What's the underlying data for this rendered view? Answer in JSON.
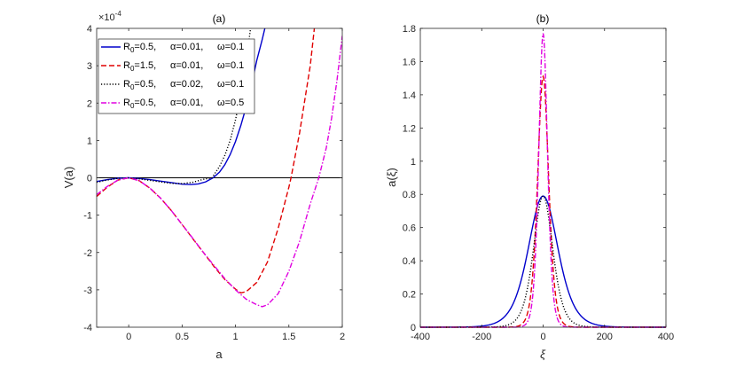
{
  "chart_data": [
    {
      "type": "line",
      "title": "(a)",
      "xlabel": "a",
      "ylabel": "V(a)",
      "exponent_label": "×10",
      "exponent_power": "-4",
      "xlim": [
        -0.3,
        2
      ],
      "ylim": [
        -4,
        4
      ],
      "xticks": [
        0,
        0.5,
        1,
        1.5,
        2
      ],
      "xtick_labels": [
        "0",
        "0.5",
        "1",
        "1.5",
        "2"
      ],
      "yticks": [
        -4,
        -3,
        -2,
        -1,
        0,
        1,
        2,
        3,
        4
      ],
      "ytick_labels": [
        "-4",
        "-3",
        "-2",
        "-1",
        "0",
        "1",
        "2",
        "3",
        "4"
      ],
      "zero_line": true,
      "series": [
        {
          "name": "R0=0.5, α=0.01, ω=0.1",
          "color": "#0000cc",
          "style": "solid",
          "x": [
            -0.3,
            -0.2,
            -0.1,
            0,
            0.1,
            0.2,
            0.3,
            0.4,
            0.5,
            0.58,
            0.65,
            0.72,
            0.79,
            0.85,
            0.9,
            0.95,
            1.0,
            1.05,
            1.1,
            1.15,
            1.2,
            1.25,
            1.3
          ],
          "y": [
            -0.1,
            -0.05,
            -0.012,
            0,
            -0.02,
            -0.05,
            -0.09,
            -0.13,
            -0.17,
            -0.18,
            -0.165,
            -0.11,
            0,
            0.15,
            0.35,
            0.62,
            0.97,
            1.4,
            1.9,
            2.5,
            3.15,
            3.7,
            4.3
          ]
        },
        {
          "name": "R0=1.5, α=0.01, ω=0.1",
          "color": "#e00000",
          "style": "dashed",
          "x": [
            -0.3,
            -0.2,
            -0.1,
            0,
            0.1,
            0.2,
            0.3,
            0.4,
            0.5,
            0.6,
            0.7,
            0.8,
            0.9,
            1.0,
            1.05,
            1.1,
            1.2,
            1.3,
            1.4,
            1.5,
            1.52,
            1.6,
            1.7,
            1.75
          ],
          "y": [
            -0.5,
            -0.25,
            -0.06,
            0,
            -0.08,
            -0.28,
            -0.55,
            -0.88,
            -1.25,
            -1.63,
            -2.0,
            -2.38,
            -2.72,
            -2.98,
            -3.08,
            -3.05,
            -2.8,
            -2.25,
            -1.35,
            -0.25,
            0,
            1.2,
            3.0,
            4.3
          ]
        },
        {
          "name": "R0=0.5, α=0.02, ω=0.1",
          "color": "#000000",
          "style": "dotted",
          "x": [
            -0.3,
            -0.2,
            -0.1,
            0,
            0.1,
            0.2,
            0.3,
            0.4,
            0.5,
            0.6,
            0.7,
            0.78,
            0.85,
            0.9,
            0.95,
            1.0,
            1.05,
            1.1,
            1.15
          ],
          "y": [
            -0.12,
            -0.06,
            -0.015,
            0,
            -0.03,
            -0.07,
            -0.11,
            -0.15,
            -0.155,
            -0.12,
            -0.04,
            0,
            0.3,
            0.6,
            1.0,
            1.55,
            2.25,
            3.1,
            4.2
          ]
        },
        {
          "name": "R0=0.5, α=0.01, ω=0.5",
          "color": "#e000e0",
          "style": "dashdot",
          "x": [
            -0.3,
            -0.2,
            -0.1,
            0,
            0.1,
            0.2,
            0.3,
            0.4,
            0.5,
            0.6,
            0.7,
            0.8,
            0.9,
            1.0,
            1.1,
            1.2,
            1.25,
            1.3,
            1.4,
            1.5,
            1.6,
            1.7,
            1.78,
            1.85,
            1.9,
            1.95,
            2.0
          ],
          "y": [
            -0.45,
            -0.23,
            -0.06,
            0,
            -0.08,
            -0.28,
            -0.55,
            -0.88,
            -1.25,
            -1.62,
            -2.0,
            -2.35,
            -2.7,
            -3.0,
            -3.25,
            -3.4,
            -3.45,
            -3.4,
            -3.1,
            -2.5,
            -1.7,
            -0.7,
            0,
            0.8,
            1.6,
            2.6,
            3.8
          ]
        }
      ],
      "legend": {
        "placement": "top-left",
        "entries": [
          {
            "r": "R",
            "sub": "0",
            "rv": "=0.5,",
            "alpha": "α=0.01,",
            "omega": "ω=0.1"
          },
          {
            "r": "R",
            "sub": "0",
            "rv": "=1.5,",
            "alpha": "α=0.01,",
            "omega": "ω=0.1"
          },
          {
            "r": "R",
            "sub": "0",
            "rv": "=0.5,",
            "alpha": "α=0.02,",
            "omega": "ω=0.1"
          },
          {
            "r": "R",
            "sub": "0",
            "rv": "=0.5,",
            "alpha": "α=0.01,",
            "omega": "ω=0.5"
          }
        ]
      }
    },
    {
      "type": "line",
      "title": "(b)",
      "xlabel": "ξ",
      "ylabel": "a(ξ)",
      "xlim": [
        -400,
        400
      ],
      "ylim": [
        0,
        1.8
      ],
      "xticks": [
        -400,
        -200,
        0,
        200,
        400
      ],
      "xtick_labels": [
        "-400",
        "-200",
        "0",
        "200",
        "400"
      ],
      "yticks": [
        0,
        0.2,
        0.4,
        0.6,
        0.8,
        1.0,
        1.2,
        1.4,
        1.6,
        1.8
      ],
      "ytick_labels": [
        "0",
        "0.2",
        "0.4",
        "0.6",
        "0.8",
        "1",
        "1.2",
        "1.4",
        "1.6",
        "1.8"
      ],
      "series": [
        {
          "name": "R0=0.5, α=0.01, ω=0.1",
          "color": "#0000cc",
          "style": "solid",
          "peak": 0.79,
          "width": 65,
          "offset": 0
        },
        {
          "name": "R0=1.5, α=0.01, ω=0.1",
          "color": "#e00000",
          "style": "dashed",
          "peak": 1.51,
          "width": 24,
          "offset": 0
        },
        {
          "name": "R0=0.5, α=0.02, ω=0.1",
          "color": "#000000",
          "style": "dotted",
          "peak": 0.79,
          "width": 42,
          "offset": 0
        },
        {
          "name": "R0=0.5, α=0.01, ω=0.5",
          "color": "#e000e0",
          "style": "dashdot",
          "peak": 1.77,
          "width": 19,
          "offset": 0
        }
      ]
    }
  ]
}
